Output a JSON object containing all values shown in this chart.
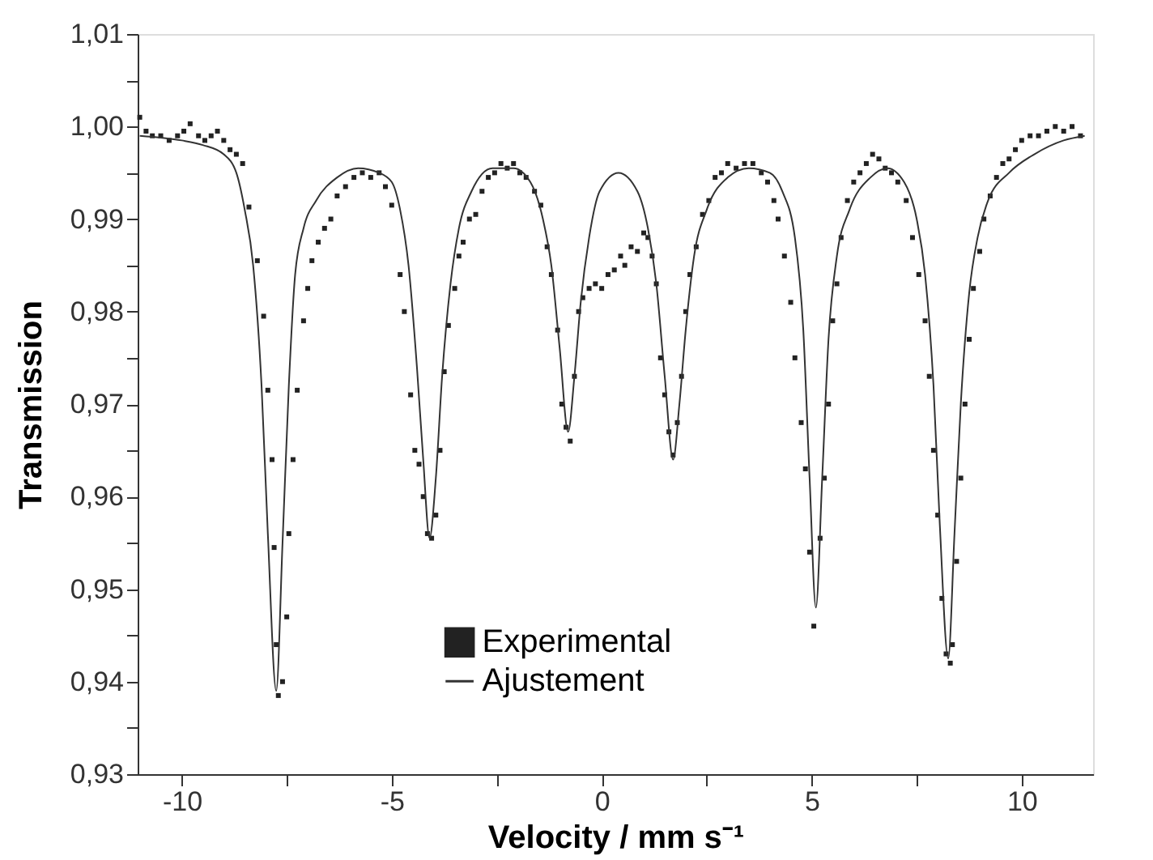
{
  "chart_data": {
    "type": "scatter",
    "xlabel": "Velocity / mm s⁻¹",
    "ylabel": "Transmission",
    "xlim": [
      -11.05,
      11.7
    ],
    "ylim": [
      0.93,
      1.01
    ],
    "xticks": [
      -10,
      {
        "value": -7.5,
        "label": null
      },
      -5,
      {
        "value": -2.5,
        "label": null
      },
      0,
      {
        "value": 2.5,
        "label": null
      },
      5,
      {
        "value": 7.5,
        "label": null
      },
      10
    ],
    "yticks": [
      {
        "value": 0.93,
        "label": "0,93"
      },
      {
        "value": 0.935,
        "label": null
      },
      {
        "value": 0.94,
        "label": "0,94"
      },
      {
        "value": 0.945,
        "label": null
      },
      {
        "value": 0.95,
        "label": "0,95"
      },
      {
        "value": 0.955,
        "label": null
      },
      {
        "value": 0.96,
        "label": "0,96"
      },
      {
        "value": 0.965,
        "label": null
      },
      {
        "value": 0.97,
        "label": "0,97"
      },
      {
        "value": 0.975,
        "label": null
      },
      {
        "value": 0.98,
        "label": "0,98"
      },
      {
        "value": 0.985,
        "label": null
      },
      {
        "value": 0.99,
        "label": "0,99"
      },
      {
        "value": 0.995,
        "label": null
      },
      {
        "value": 1.0,
        "label": "1,00"
      },
      {
        "value": 1.005,
        "label": null
      },
      {
        "value": 1.01,
        "label": "1,01"
      }
    ],
    "grid": false,
    "legend": "bottom",
    "series": [
      {
        "name": "Experimental",
        "type": "scatter",
        "marker": "square",
        "color": "#222222",
        "x": [
          -11.0,
          -10.85,
          -10.7,
          -10.5,
          -10.3,
          -10.1,
          -9.95,
          -9.8,
          -9.6,
          -9.45,
          -9.3,
          -9.15,
          -9.0,
          -8.85,
          -8.7,
          -8.55,
          -8.4,
          -8.2,
          -8.05,
          -7.95,
          -7.85,
          -7.8,
          -7.75,
          -7.7,
          -7.6,
          -7.5,
          -7.45,
          -7.35,
          -7.25,
          -7.1,
          -7.0,
          -6.9,
          -6.75,
          -6.6,
          -6.45,
          -6.3,
          -6.1,
          -5.9,
          -5.7,
          -5.5,
          -5.3,
          -5.15,
          -5.0,
          -4.8,
          -4.7,
          -4.55,
          -4.45,
          -4.35,
          -4.25,
          -4.15,
          -4.05,
          -3.95,
          -3.85,
          -3.75,
          -3.65,
          -3.5,
          -3.4,
          -3.3,
          -3.15,
          -3.0,
          -2.85,
          -2.7,
          -2.55,
          -2.4,
          -2.25,
          -2.1,
          -1.95,
          -1.8,
          -1.6,
          -1.45,
          -1.3,
          -1.2,
          -1.05,
          -0.95,
          -0.85,
          -0.75,
          -0.65,
          -0.55,
          -0.45,
          -0.3,
          -0.15,
          0.0,
          0.15,
          0.3,
          0.45,
          0.55,
          0.7,
          0.85,
          1.0,
          1.1,
          1.2,
          1.3,
          1.4,
          1.5,
          1.6,
          1.7,
          1.8,
          1.9,
          2.0,
          2.1,
          2.25,
          2.4,
          2.55,
          2.7,
          2.85,
          3.0,
          3.2,
          3.4,
          3.6,
          3.8,
          3.95,
          4.1,
          4.2,
          4.35,
          4.5,
          4.6,
          4.75,
          4.85,
          4.95,
          5.05,
          5.2,
          5.3,
          5.4,
          5.5,
          5.6,
          5.7,
          5.85,
          6.0,
          6.15,
          6.3,
          6.45,
          6.6,
          6.75,
          6.9,
          7.05,
          7.25,
          7.4,
          7.55,
          7.7,
          7.8,
          7.9,
          8.0,
          8.1,
          8.2,
          8.3,
          8.35,
          8.45,
          8.55,
          8.65,
          8.75,
          8.85,
          9.0,
          9.1,
          9.25,
          9.4,
          9.55,
          9.7,
          9.85,
          10.0,
          10.2,
          10.4,
          10.6,
          10.8,
          11.0,
          11.2,
          11.4
        ],
        "values": [
          1.001,
          0.9995,
          0.999,
          0.999,
          0.9985,
          0.999,
          0.9995,
          1.0003,
          0.999,
          0.9985,
          0.999,
          0.9995,
          0.9985,
          0.9975,
          0.997,
          0.996,
          0.9913,
          0.9855,
          0.9795,
          0.9715,
          0.964,
          0.9545,
          0.944,
          0.9385,
          0.94,
          0.947,
          0.956,
          0.964,
          0.9715,
          0.979,
          0.9825,
          0.9855,
          0.9875,
          0.989,
          0.99,
          0.9925,
          0.9935,
          0.9945,
          0.995,
          0.9945,
          0.995,
          0.9935,
          0.9915,
          0.984,
          0.98,
          0.971,
          0.965,
          0.9635,
          0.96,
          0.956,
          0.9555,
          0.958,
          0.965,
          0.9735,
          0.9785,
          0.9825,
          0.986,
          0.9875,
          0.99,
          0.9905,
          0.993,
          0.9945,
          0.995,
          0.996,
          0.9955,
          0.996,
          0.995,
          0.9945,
          0.993,
          0.9915,
          0.987,
          0.984,
          0.978,
          0.97,
          0.9675,
          0.966,
          0.973,
          0.98,
          0.9815,
          0.9825,
          0.983,
          0.9825,
          0.984,
          0.9845,
          0.986,
          0.985,
          0.987,
          0.9865,
          0.9885,
          0.988,
          0.986,
          0.983,
          0.975,
          0.971,
          0.967,
          0.9645,
          0.968,
          0.973,
          0.98,
          0.984,
          0.987,
          0.9905,
          0.992,
          0.9945,
          0.995,
          0.996,
          0.9955,
          0.996,
          0.996,
          0.995,
          0.994,
          0.992,
          0.99,
          0.986,
          0.981,
          0.975,
          0.968,
          0.963,
          0.954,
          0.946,
          0.9555,
          0.962,
          0.97,
          0.979,
          0.983,
          0.988,
          0.992,
          0.994,
          0.995,
          0.996,
          0.997,
          0.9965,
          0.9955,
          0.995,
          0.994,
          0.992,
          0.988,
          0.984,
          0.979,
          0.973,
          0.965,
          0.958,
          0.949,
          0.943,
          0.942,
          0.944,
          0.953,
          0.962,
          0.97,
          0.977,
          0.9825,
          0.9865,
          0.99,
          0.9925,
          0.9945,
          0.996,
          0.9965,
          0.9975,
          0.9985,
          0.999,
          0.999,
          0.9995,
          1.0,
          0.9995,
          1.0,
          0.999
        ]
      },
      {
        "name": "Ajustement",
        "type": "line",
        "line_style": "solid",
        "color": "#333333",
        "x": [
          -11,
          -10,
          -9.5,
          -9,
          -8.7,
          -8.5,
          -8.3,
          -8.1,
          -7.95,
          -7.75,
          -7.6,
          -7.45,
          -7.3,
          -7.1,
          -6.8,
          -6.3,
          -5.8,
          -5.3,
          -5,
          -4.8,
          -4.6,
          -4.4,
          -4.25,
          -4.1,
          -3.95,
          -3.8,
          -3.6,
          -3.4,
          -3.1,
          -2.6,
          -2.1,
          -1.7,
          -1.4,
          -1.2,
          -1.0,
          -0.8,
          -0.65,
          -0.5,
          -0.3,
          -0.05,
          0.4,
          0.85,
          1.1,
          1.3,
          1.5,
          1.7,
          1.85,
          2.0,
          2.2,
          2.5,
          3,
          3.5,
          4.0,
          4.3,
          4.6,
          4.8,
          4.95,
          5.1,
          5.25,
          5.4,
          5.6,
          5.9,
          6.4,
          6.8,
          7.2,
          7.5,
          7.7,
          7.9,
          8.05,
          8.25,
          8.4,
          8.55,
          8.75,
          8.95,
          9.2,
          9.7,
          10.3,
          11,
          11.5
        ],
        "values": [
          0.999,
          0.9985,
          0.998,
          0.997,
          0.995,
          0.991,
          0.985,
          0.972,
          0.956,
          0.939,
          0.955,
          0.972,
          0.984,
          0.989,
          0.992,
          0.9945,
          0.9955,
          0.995,
          0.994,
          0.991,
          0.985,
          0.974,
          0.964,
          0.9555,
          0.962,
          0.973,
          0.983,
          0.989,
          0.993,
          0.9955,
          0.9955,
          0.994,
          0.99,
          0.985,
          0.976,
          0.967,
          0.973,
          0.981,
          0.988,
          0.993,
          0.995,
          0.993,
          0.989,
          0.983,
          0.973,
          0.964,
          0.97,
          0.978,
          0.986,
          0.991,
          0.9945,
          0.9955,
          0.995,
          0.993,
          0.988,
          0.978,
          0.962,
          0.948,
          0.962,
          0.977,
          0.986,
          0.991,
          0.9945,
          0.9955,
          0.994,
          0.99,
          0.984,
          0.972,
          0.957,
          0.9425,
          0.956,
          0.97,
          0.982,
          0.988,
          0.992,
          0.995,
          0.997,
          0.9985,
          0.999
        ]
      }
    ]
  }
}
